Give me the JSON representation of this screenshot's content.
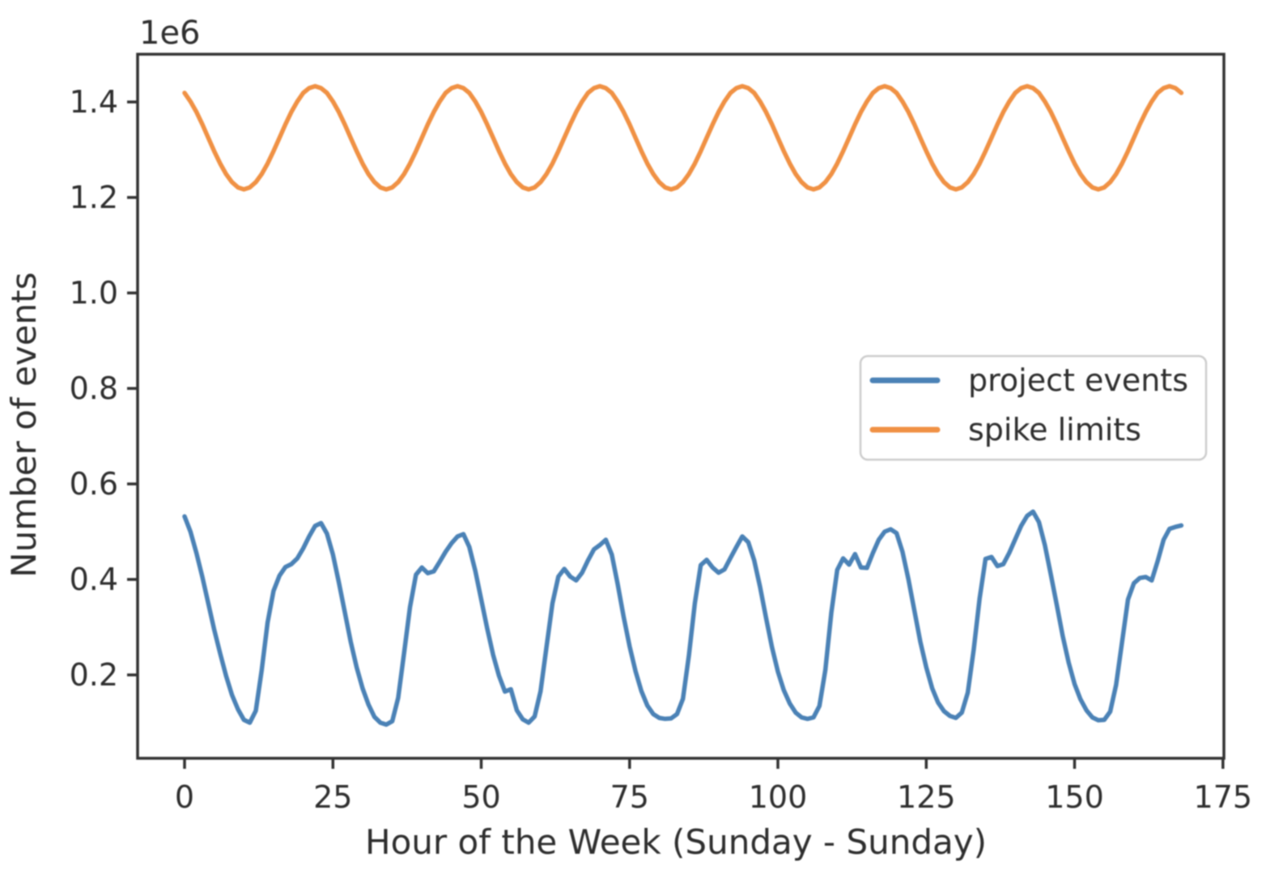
{
  "figure": {
    "background": "#ffffff",
    "text_color": "#2e2e2e",
    "spine_color": "#333333"
  },
  "chart_data": {
    "type": "line",
    "title": "",
    "xlabel": "Hour of the Week (Sunday - Sunday)",
    "ylabel": "Number of events",
    "offset_text": "1e6",
    "x_unit": "hour",
    "x_start": 0,
    "x_step": 1,
    "x_end": 168,
    "xlim": [
      -8,
      176
    ],
    "ylim_1e6": [
      0.025,
      1.5
    ],
    "x_ticks": [
      0,
      25,
      50,
      75,
      100,
      125,
      150,
      175
    ],
    "y_ticks": [
      "0.2",
      "0.4",
      "0.6",
      "0.8",
      "1.0",
      "1.2",
      "1.4"
    ],
    "grid": false,
    "legend": {
      "position": "center right",
      "entries": [
        "project events",
        "spike limits"
      ]
    },
    "series": [
      {
        "name": "project events",
        "color": "#4b82b6",
        "values_1e6": [
          0.532,
          0.5,
          0.455,
          0.405,
          0.35,
          0.295,
          0.245,
          0.198,
          0.158,
          0.128,
          0.106,
          0.1,
          0.125,
          0.21,
          0.31,
          0.376,
          0.408,
          0.426,
          0.432,
          0.444,
          0.465,
          0.49,
          0.512,
          0.518,
          0.496,
          0.452,
          0.394,
          0.332,
          0.27,
          0.216,
          0.172,
          0.138,
          0.112,
          0.1,
          0.096,
          0.103,
          0.152,
          0.246,
          0.342,
          0.41,
          0.425,
          0.413,
          0.417,
          0.437,
          0.458,
          0.476,
          0.49,
          0.495,
          0.468,
          0.418,
          0.358,
          0.298,
          0.242,
          0.198,
          0.165,
          0.17,
          0.126,
          0.107,
          0.1,
          0.113,
          0.166,
          0.258,
          0.35,
          0.406,
          0.422,
          0.406,
          0.398,
          0.414,
          0.44,
          0.463,
          0.472,
          0.483,
          0.452,
          0.39,
          0.322,
          0.26,
          0.208,
          0.166,
          0.136,
          0.118,
          0.11,
          0.108,
          0.109,
          0.118,
          0.15,
          0.24,
          0.35,
          0.43,
          0.441,
          0.425,
          0.414,
          0.421,
          0.445,
          0.468,
          0.49,
          0.478,
          0.44,
          0.384,
          0.32,
          0.258,
          0.207,
          0.168,
          0.14,
          0.121,
          0.111,
          0.108,
          0.111,
          0.135,
          0.21,
          0.33,
          0.42,
          0.444,
          0.431,
          0.453,
          0.425,
          0.424,
          0.455,
          0.483,
          0.5,
          0.505,
          0.497,
          0.458,
          0.4,
          0.335,
          0.27,
          0.216,
          0.172,
          0.142,
          0.124,
          0.114,
          0.11,
          0.121,
          0.163,
          0.253,
          0.36,
          0.443,
          0.447,
          0.428,
          0.432,
          0.456,
          0.484,
          0.512,
          0.533,
          0.542,
          0.52,
          0.472,
          0.41,
          0.347,
          0.282,
          0.226,
          0.181,
          0.149,
          0.126,
          0.111,
          0.105,
          0.106,
          0.123,
          0.179,
          0.268,
          0.358,
          0.392,
          0.403,
          0.405,
          0.398,
          0.438,
          0.483,
          0.506,
          0.51,
          0.513
        ]
      },
      {
        "name": "spike limits",
        "color": "#f09144",
        "values_1e6": [
          1.419,
          1.401,
          1.379,
          1.353,
          1.325,
          1.297,
          1.271,
          1.249,
          1.232,
          1.221,
          1.217,
          1.221,
          1.232,
          1.249,
          1.271,
          1.297,
          1.325,
          1.353,
          1.379,
          1.401,
          1.419,
          1.429,
          1.433,
          1.429,
          1.419,
          1.401,
          1.379,
          1.353,
          1.325,
          1.297,
          1.271,
          1.249,
          1.232,
          1.221,
          1.217,
          1.221,
          1.232,
          1.249,
          1.271,
          1.297,
          1.325,
          1.353,
          1.379,
          1.401,
          1.419,
          1.429,
          1.433,
          1.429,
          1.419,
          1.401,
          1.379,
          1.353,
          1.325,
          1.297,
          1.271,
          1.249,
          1.232,
          1.221,
          1.217,
          1.221,
          1.232,
          1.249,
          1.271,
          1.297,
          1.325,
          1.353,
          1.379,
          1.401,
          1.419,
          1.429,
          1.433,
          1.429,
          1.419,
          1.401,
          1.379,
          1.353,
          1.325,
          1.297,
          1.271,
          1.249,
          1.232,
          1.221,
          1.217,
          1.221,
          1.232,
          1.249,
          1.271,
          1.297,
          1.325,
          1.353,
          1.379,
          1.401,
          1.419,
          1.429,
          1.433,
          1.429,
          1.419,
          1.401,
          1.379,
          1.353,
          1.325,
          1.297,
          1.271,
          1.249,
          1.232,
          1.221,
          1.217,
          1.221,
          1.232,
          1.249,
          1.271,
          1.297,
          1.325,
          1.353,
          1.379,
          1.401,
          1.419,
          1.429,
          1.433,
          1.429,
          1.419,
          1.401,
          1.379,
          1.353,
          1.325,
          1.297,
          1.271,
          1.249,
          1.232,
          1.221,
          1.217,
          1.221,
          1.232,
          1.249,
          1.271,
          1.297,
          1.325,
          1.353,
          1.379,
          1.401,
          1.419,
          1.429,
          1.433,
          1.429,
          1.419,
          1.401,
          1.379,
          1.353,
          1.325,
          1.297,
          1.271,
          1.249,
          1.232,
          1.221,
          1.217,
          1.221,
          1.232,
          1.249,
          1.271,
          1.297,
          1.325,
          1.353,
          1.379,
          1.401,
          1.419,
          1.429,
          1.433,
          1.429,
          1.419
        ]
      }
    ]
  }
}
